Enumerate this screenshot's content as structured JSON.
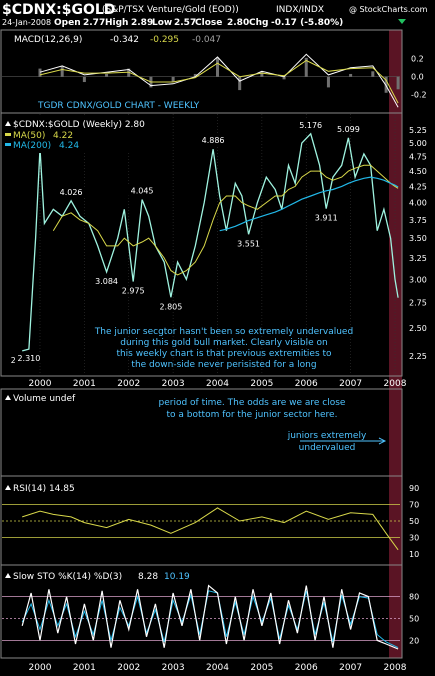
{
  "header": {
    "symbol": "$CDNX:$GOLD",
    "name": "(S&P/TSX Venture/Gold (EOD))",
    "exchange": "INDX/INDX",
    "copyright": "@ StockCharts.com",
    "date": "24-Jan-2008",
    "open_label": "Open",
    "open": "2.77",
    "high_label": "High",
    "high": "2.89",
    "low_label": "Low",
    "low": "2.57",
    "close_label": "Close",
    "close": "2.80",
    "chg_label": "Chg",
    "chg": "-0.17 (-5.80%)"
  },
  "colors": {
    "background": "#000000",
    "panel_border": "#888888",
    "price_line": "#9ff3e0",
    "ma50": "#d8d84a",
    "ma200": "#22b8e8",
    "macd_line": "#ffffff",
    "macd_signal": "#d8d84a",
    "macd_hist": "#707070",
    "annotation": "#4fc3ff",
    "highlight_band": "#5a1424",
    "label_box": "#000000"
  },
  "chart_data": [
    {
      "id": "macd",
      "type": "line",
      "title": "MACD(12,26,9)",
      "readouts": [
        "-0.342",
        "-0.295",
        "-0.047"
      ],
      "y_ticks": [
        "0.2",
        "0.0",
        "-0.2"
      ],
      "ylim": [
        -0.35,
        0.32
      ],
      "x": [
        2000.0,
        2000.5,
        2001.0,
        2001.5,
        2002.0,
        2002.5,
        2003.0,
        2003.5,
        2004.0,
        2004.5,
        2005.0,
        2005.5,
        2006.0,
        2006.5,
        2007.0,
        2007.5,
        2007.8,
        2008.07
      ],
      "series": [
        {
          "values": [
            0.05,
            0.12,
            0.02,
            0.05,
            0.08,
            -0.1,
            -0.08,
            0.0,
            0.22,
            -0.05,
            0.06,
            0.0,
            0.25,
            0.02,
            0.1,
            0.12,
            -0.1,
            -0.342
          ]
        },
        {
          "values": [
            0.02,
            0.08,
            0.04,
            0.04,
            0.05,
            -0.06,
            -0.06,
            -0.01,
            0.15,
            0.0,
            0.04,
            0.01,
            0.18,
            0.06,
            0.09,
            0.1,
            -0.04,
            -0.295
          ]
        }
      ]
    },
    {
      "id": "price",
      "type": "line",
      "title": "$CDNX:$GOLD (Weekly) 2.80",
      "subtitle": "TGDR CDNX/GOLD CHART - WEEKLY",
      "scale": "log",
      "ylim": [
        2.12,
        5.45
      ],
      "y_ticks": [
        5.25,
        5.0,
        4.75,
        4.5,
        4.25,
        4.0,
        3.75,
        3.5,
        3.25,
        3.0,
        2.75,
        2.5,
        2.25
      ],
      "x_ticks": [
        "2000",
        "2001",
        "2002",
        "2003",
        "2004",
        "2005",
        "2006",
        "2007",
        "2008"
      ],
      "x": [
        1999.6,
        1999.75,
        1999.9,
        2000.0,
        2000.1,
        2000.3,
        2000.5,
        2000.7,
        2000.9,
        2001.1,
        2001.3,
        2001.5,
        2001.75,
        2001.9,
        2002.1,
        2002.3,
        2002.45,
        2002.6,
        2002.8,
        2002.95,
        2003.1,
        2003.3,
        2003.5,
        2003.7,
        2003.9,
        2004.05,
        2004.2,
        2004.4,
        2004.55,
        2004.7,
        2004.9,
        2005.1,
        2005.3,
        2005.45,
        2005.6,
        2005.75,
        2005.9,
        2006.1,
        2006.3,
        2006.45,
        2006.6,
        2006.8,
        2006.95,
        2007.1,
        2007.3,
        2007.45,
        2007.6,
        2007.75,
        2007.9,
        2008.0,
        2008.07
      ],
      "series": [
        {
          "name": "$CDNX:$GOLD",
          "values": [
            2.294,
            2.31,
            3.5,
            4.9,
            3.7,
            3.9,
            3.8,
            4.026,
            3.8,
            3.7,
            3.4,
            3.084,
            3.5,
            3.9,
            2.975,
            4.045,
            3.8,
            3.4,
            3.2,
            2.805,
            3.2,
            3.0,
            3.4,
            4.0,
            4.886,
            4.1,
            3.6,
            4.3,
            4.1,
            3.551,
            4.0,
            4.4,
            4.2,
            3.9,
            4.6,
            4.3,
            5.0,
            5.176,
            4.6,
            3.911,
            4.4,
            4.6,
            5.099,
            4.4,
            4.8,
            4.6,
            3.6,
            3.9,
            3.5,
            3.0,
            2.8
          ]
        },
        {
          "name": "MA(50)",
          "readout": "4.22",
          "values": [
            null,
            null,
            null,
            null,
            null,
            3.6,
            3.8,
            3.85,
            3.75,
            3.7,
            3.6,
            3.4,
            3.4,
            3.5,
            3.4,
            3.45,
            3.5,
            3.4,
            3.25,
            3.1,
            3.05,
            3.1,
            3.2,
            3.4,
            3.75,
            4.0,
            4.1,
            4.1,
            4.0,
            3.95,
            3.9,
            4.0,
            4.1,
            4.1,
            4.2,
            4.25,
            4.4,
            4.5,
            4.5,
            4.4,
            4.35,
            4.4,
            4.5,
            4.55,
            4.6,
            4.6,
            4.5,
            4.4,
            4.3,
            4.25,
            4.22
          ]
        },
        {
          "name": "MA(200)",
          "readout": "4.24",
          "values": [
            null,
            null,
            null,
            null,
            null,
            null,
            null,
            null,
            null,
            null,
            null,
            null,
            null,
            null,
            null,
            null,
            null,
            null,
            null,
            null,
            null,
            null,
            null,
            null,
            null,
            3.6,
            3.62,
            3.66,
            3.7,
            3.74,
            3.78,
            3.82,
            3.86,
            3.9,
            3.95,
            4.0,
            4.05,
            4.1,
            4.15,
            4.18,
            4.2,
            4.25,
            4.3,
            4.34,
            4.38,
            4.4,
            4.38,
            4.35,
            4.3,
            4.27,
            4.24
          ]
        }
      ],
      "data_labels": [
        {
          "text": "2.294",
          "x": 1999.6,
          "y": 2.294
        },
        {
          "text": "2.310",
          "x": 1999.75,
          "y": 2.31
        },
        {
          "text": "4.026",
          "x": 2000.7,
          "y": 4.026
        },
        {
          "text": "3.084",
          "x": 2001.5,
          "y": 3.084
        },
        {
          "text": "2.975",
          "x": 2002.1,
          "y": 2.975
        },
        {
          "text": "4.045",
          "x": 2002.3,
          "y": 4.045
        },
        {
          "text": "2.805",
          "x": 2002.95,
          "y": 2.805
        },
        {
          "text": "4.886",
          "x": 2003.9,
          "y": 4.886
        },
        {
          "text": "3.551",
          "x": 2004.7,
          "y": 3.551
        },
        {
          "text": "5.176",
          "x": 2006.1,
          "y": 5.176
        },
        {
          "text": "3.911",
          "x": 2006.45,
          "y": 3.911
        },
        {
          "text": "5.099",
          "x": 2006.95,
          "y": 5.099
        }
      ],
      "annotation": [
        "The junior secgtor hasn't been so extremely undervalued",
        "during this gold bull market. Clearly visible on",
        "this weekly chart is that previous extremities to",
        "the down-side never  perisisted for a long"
      ]
    },
    {
      "id": "volume",
      "type": "line",
      "title": "Volume undef",
      "annotation": [
        "period of time. The odds are we are close",
        "to a bottom for the junior sector here."
      ],
      "annotation2": [
        "juniors extremely",
        "undervalued"
      ]
    },
    {
      "id": "rsi",
      "type": "line",
      "title": "RSI(14) 14.85",
      "ylim": [
        0,
        100
      ],
      "y_ticks": [
        "90",
        "70",
        "50",
        "30",
        "10"
      ],
      "reference_lines": [
        70,
        50,
        30
      ],
      "x": [
        1999.6,
        2000.0,
        2000.3,
        2000.7,
        2001.0,
        2001.5,
        2002.0,
        2002.5,
        2002.95,
        2003.5,
        2004.0,
        2004.5,
        2005.0,
        2005.5,
        2006.0,
        2006.5,
        2007.0,
        2007.5,
        2007.8,
        2008.07
      ],
      "series": [
        {
          "name": "RSI(14)",
          "values": [
            55,
            62,
            58,
            55,
            48,
            42,
            52,
            45,
            35,
            48,
            66,
            50,
            55,
            48,
            62,
            52,
            60,
            58,
            35,
            14.85
          ]
        }
      ]
    },
    {
      "id": "sto",
      "type": "line",
      "title": "Slow STO %K(14) %D(3)",
      "readouts": [
        "8.28",
        "10.19"
      ],
      "ylim": [
        0,
        100
      ],
      "y_ticks": [
        "80",
        "50",
        "20"
      ],
      "reference_lines": [
        80,
        50,
        20
      ],
      "x": [
        1999.6,
        1999.8,
        2000.0,
        2000.2,
        2000.4,
        2000.6,
        2000.8,
        2001.0,
        2001.2,
        2001.4,
        2001.6,
        2001.8,
        2002.0,
        2002.2,
        2002.4,
        2002.6,
        2002.8,
        2003.0,
        2003.2,
        2003.4,
        2003.6,
        2003.8,
        2004.0,
        2004.2,
        2004.4,
        2004.6,
        2004.8,
        2005.0,
        2005.2,
        2005.4,
        2005.6,
        2005.8,
        2006.0,
        2006.2,
        2006.4,
        2006.6,
        2006.8,
        2007.0,
        2007.2,
        2007.4,
        2007.6,
        2007.8,
        2008.07
      ],
      "series": [
        {
          "name": "%K",
          "values": [
            40,
            85,
            20,
            90,
            30,
            80,
            15,
            70,
            20,
            88,
            10,
            75,
            35,
            90,
            25,
            70,
            10,
            85,
            40,
            90,
            20,
            95,
            85,
            15,
            80,
            20,
            90,
            40,
            85,
            15,
            75,
            30,
            95,
            20,
            80,
            10,
            90,
            35,
            85,
            80,
            20,
            15,
            8.28
          ]
        },
        {
          "name": "%D",
          "values": [
            45,
            70,
            35,
            75,
            40,
            70,
            25,
            60,
            28,
            75,
            20,
            65,
            40,
            80,
            30,
            62,
            18,
            75,
            45,
            82,
            28,
            88,
            85,
            25,
            72,
            28,
            80,
            45,
            78,
            22,
            68,
            35,
            88,
            28,
            72,
            18,
            82,
            42,
            80,
            78,
            28,
            18,
            10.19
          ]
        }
      ]
    }
  ]
}
